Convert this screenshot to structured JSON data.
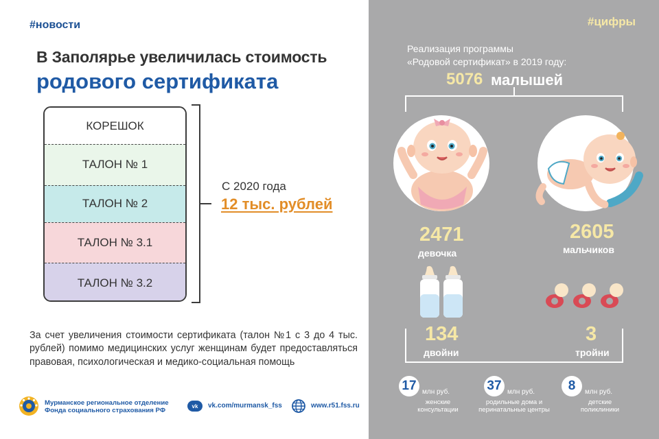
{
  "left": {
    "tag": "#новости",
    "title_line1": "В Заполярье увеличилась стоимость",
    "title_line2": "родового сертификата",
    "certificate": {
      "rows": [
        "КОРЕШОК",
        "ТАЛОН № 1",
        "ТАЛОН № 2",
        "ТАЛОН № 3.1",
        "ТАЛОН № 3.2"
      ],
      "row_colors": [
        "#ffffff",
        "#eaf6ea",
        "#c6eaea",
        "#f7d7da",
        "#d7d2ea"
      ]
    },
    "since_label": "С 2020 года",
    "price": "12 тыс. рублей",
    "paragraph": "За счет увеличения стоимости сертификата (талон №1 с 3 до 4 тыс. рублей) помимо медицинских услуг женщинам будет предоставляться правовая, психологическая и медико-социальная помощь",
    "footer": {
      "org_line1": "Мурманское региональное отделение",
      "org_line2": "Фонда социального страхования РФ",
      "vk_icon_text": "vk",
      "vk_link": "vk.com/murmansk_fss",
      "web_link": "www.r51.fss.ru"
    }
  },
  "right": {
    "tag": "#цифры",
    "subtitle_line1": "Реализация программы",
    "subtitle_line2": "«Родовой сертификат» в 2019 году:",
    "total_number": "5076",
    "total_unit": "малышей",
    "girls_number": "2471",
    "girls_label": "девочка",
    "boys_number": "2605",
    "boys_label": "мальчиков",
    "twins_number": "134",
    "twins_label": "двойни",
    "triplets_number": "3",
    "triplets_label": "тройни",
    "stats": [
      {
        "value": "17",
        "unit": "млн руб.",
        "desc1": "женские",
        "desc2": "консультации"
      },
      {
        "value": "37",
        "unit": "млн руб.",
        "desc1": "родильные дома и",
        "desc2": "перинатальные центры"
      },
      {
        "value": "8",
        "unit": "млн руб.",
        "desc1": "детские",
        "desc2": "поликлиники"
      }
    ]
  },
  "colors": {
    "brand_blue": "#1f5aa5",
    "accent_orange": "#e28d27",
    "accent_yellow": "#f6e8a6",
    "right_bg": "#a9a9aa"
  }
}
